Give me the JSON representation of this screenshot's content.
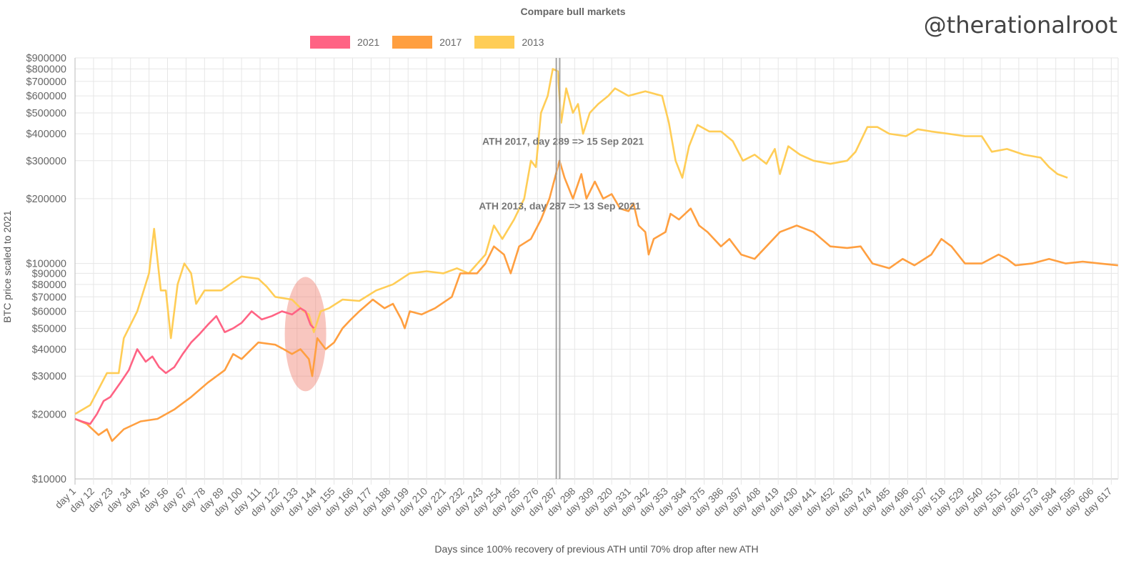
{
  "chart_data": {
    "type": "line",
    "title": "Compare bull markets",
    "watermark": "@therationalroot",
    "xlabel": "Days since 100% recovery of previous ATH until 70% drop after new ATH",
    "ylabel": "BTC price scaled to 2021",
    "y_scale": "log",
    "ylim": [
      10000,
      900000
    ],
    "xlim": [
      1,
      621
    ],
    "grid": true,
    "legend_position": "top",
    "y_ticks": [
      "$900000",
      "$800000",
      "$700000",
      "$600000",
      "$500000",
      "$400000",
      "$300000",
      "$200000",
      "$100000",
      "$90000",
      "$80000",
      "$70000",
      "$60000",
      "$50000",
      "$40000",
      "$30000",
      "$20000",
      "$10000"
    ],
    "y_tick_values": [
      900000,
      800000,
      700000,
      600000,
      500000,
      400000,
      300000,
      200000,
      100000,
      90000,
      80000,
      70000,
      60000,
      50000,
      40000,
      30000,
      20000,
      10000
    ],
    "x_ticks": [
      "day 1",
      "day 12",
      "day 23",
      "day 34",
      "day 45",
      "day 56",
      "day 67",
      "day 78",
      "day 89",
      "day 100",
      "day 111",
      "day 122",
      "day 133",
      "day 144",
      "day 155",
      "day 166",
      "day 177",
      "day 188",
      "day 199",
      "day 210",
      "day 221",
      "day 232",
      "day 243",
      "day 254",
      "day 265",
      "day 276",
      "day 287",
      "day 298",
      "day 309",
      "day 320",
      "day 331",
      "day 342",
      "day 353",
      "day 364",
      "day 375",
      "day 386",
      "day 397",
      "day 408",
      "day 419",
      "day 430",
      "day 441",
      "day 452",
      "day 463",
      "day 474",
      "day 485",
      "day 496",
      "day 507",
      "day 518",
      "day 529",
      "day 540",
      "day 551",
      "day 562",
      "day 573",
      "day 584",
      "day 595",
      "day 606",
      "day 617"
    ],
    "annotations": [
      {
        "label": "ATH 2017, day 289 => 15 Sep 2021",
        "day": 289,
        "value": 370000
      },
      {
        "label": "ATH 2013, day 287 => 13 Sep 2021",
        "day": 287,
        "value": 185000
      }
    ],
    "highlight": {
      "day_center": 138,
      "value_center": 47000,
      "color": "#f08070"
    },
    "series": [
      {
        "name": "2021",
        "color": "#ff6384",
        "days": [
          1,
          5,
          10,
          14,
          18,
          22,
          28,
          33,
          38,
          43,
          47,
          51,
          55,
          60,
          65,
          70,
          75,
          80,
          85,
          90,
          95,
          100,
          106,
          112,
          118,
          124,
          130,
          135,
          138,
          141,
          143
        ],
        "values": [
          19000,
          18500,
          18000,
          20000,
          23000,
          24000,
          28000,
          32000,
          40000,
          35000,
          37000,
          33000,
          31000,
          33000,
          38000,
          43000,
          47000,
          52000,
          57000,
          48000,
          50000,
          53000,
          60000,
          55000,
          57000,
          60000,
          58000,
          62000,
          60000,
          52000,
          50000
        ]
      },
      {
        "name": "2017",
        "color": "#ff9f40",
        "days": [
          1,
          8,
          15,
          20,
          23,
          30,
          40,
          50,
          60,
          70,
          80,
          90,
          95,
          100,
          110,
          120,
          125,
          130,
          135,
          140,
          142,
          145,
          150,
          155,
          160,
          165,
          170,
          178,
          185,
          190,
          195,
          197,
          200,
          207,
          215,
          225,
          230,
          240,
          245,
          250,
          256,
          260,
          265,
          272,
          278,
          283,
          289,
          292,
          297,
          302,
          305,
          310,
          315,
          320,
          325,
          330,
          333,
          336,
          340,
          342,
          345,
          352,
          355,
          360,
          367,
          372,
          377,
          385,
          390,
          397,
          405,
          412,
          420,
          430,
          440,
          450,
          460,
          468,
          475,
          485,
          493,
          500,
          510,
          516,
          522,
          530,
          540,
          550,
          555,
          560,
          570,
          580,
          590,
          600,
          610,
          621
        ],
        "values": [
          19000,
          18000,
          16000,
          17000,
          15000,
          17000,
          18500,
          19000,
          21000,
          24000,
          28000,
          32000,
          38000,
          36000,
          43000,
          42000,
          40000,
          38000,
          40000,
          36000,
          30000,
          45000,
          40000,
          43000,
          50000,
          55000,
          60000,
          68000,
          62000,
          65000,
          55000,
          50000,
          60000,
          58000,
          62000,
          70000,
          90000,
          90000,
          100000,
          120000,
          110000,
          90000,
          120000,
          130000,
          160000,
          200000,
          300000,
          250000,
          200000,
          260000,
          200000,
          240000,
          200000,
          210000,
          180000,
          175000,
          190000,
          150000,
          140000,
          110000,
          130000,
          140000,
          170000,
          160000,
          180000,
          150000,
          140000,
          120000,
          130000,
          110000,
          105000,
          120000,
          140000,
          150000,
          140000,
          120000,
          118000,
          120000,
          100000,
          95000,
          105000,
          98000,
          110000,
          130000,
          120000,
          100000,
          100000,
          110000,
          105000,
          98000,
          100000,
          105000,
          100000,
          102000,
          100000,
          98000
        ]
      },
      {
        "name": "2013",
        "color": "#ffcd56",
        "days": [
          1,
          10,
          20,
          27,
          30,
          38,
          45,
          48,
          52,
          55,
          58,
          62,
          66,
          70,
          73,
          78,
          88,
          95,
          100,
          110,
          115,
          120,
          130,
          137,
          140,
          143,
          147,
          152,
          160,
          170,
          180,
          190,
          200,
          210,
          220,
          228,
          235,
          245,
          250,
          255,
          262,
          268,
          272,
          275,
          278,
          282,
          285,
          288,
          290,
          293,
          297,
          300,
          303,
          307,
          312,
          318,
          322,
          330,
          340,
          350,
          354,
          358,
          362,
          366,
          371,
          378,
          385,
          392,
          398,
          405,
          412,
          417,
          420,
          425,
          432,
          440,
          450,
          460,
          465,
          472,
          478,
          485,
          495,
          502,
          510,
          520,
          530,
          540,
          546,
          555,
          565,
          575,
          580,
          585,
          591
        ],
        "values": [
          20000,
          22000,
          31000,
          31000,
          45000,
          60000,
          90000,
          145000,
          75000,
          75000,
          45000,
          80000,
          100000,
          90000,
          65000,
          75000,
          75000,
          82000,
          87000,
          85000,
          78000,
          70000,
          68000,
          60000,
          58000,
          48000,
          60000,
          62000,
          68000,
          67000,
          75000,
          80000,
          90000,
          92000,
          90000,
          95000,
          90000,
          110000,
          150000,
          130000,
          160000,
          200000,
          300000,
          280000,
          500000,
          600000,
          800000,
          780000,
          450000,
          650000,
          500000,
          550000,
          400000,
          500000,
          550000,
          600000,
          650000,
          600000,
          630000,
          600000,
          450000,
          300000,
          250000,
          350000,
          440000,
          410000,
          410000,
          370000,
          300000,
          320000,
          290000,
          340000,
          260000,
          350000,
          320000,
          300000,
          290000,
          300000,
          330000,
          430000,
          430000,
          400000,
          390000,
          420000,
          410000,
          400000,
          390000,
          390000,
          330000,
          340000,
          320000,
          310000,
          280000,
          260000,
          250000
        ]
      }
    ]
  }
}
